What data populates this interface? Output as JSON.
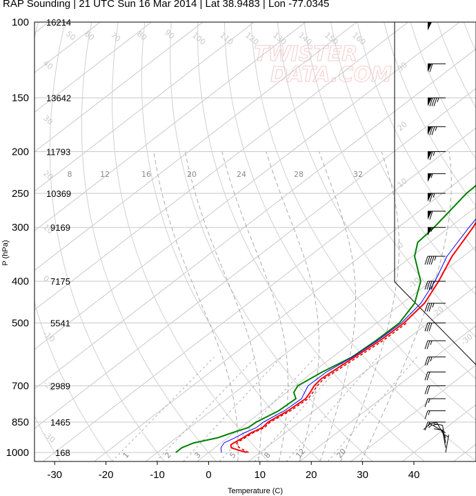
{
  "title": "RAP Sounding | 21 UTC Sun 16 Mar 2014 | Lat 38.9483 | Lon -77.0345",
  "watermark": [
    "TWISTER",
    "DATA.COM"
  ],
  "colors": {
    "temperature": "#ff0000",
    "dewpoint": "#008000",
    "wetbulb": "#0000ff",
    "parcel": "#cc0000",
    "grid": "#c8c8c8",
    "mixing_ratio": "#aaaaaa",
    "adiabat": "#d0d0d0"
  },
  "chart_data": {
    "type": "skew-t",
    "xlabel": "Temperature (C)",
    "ylabel": "P (hPa)",
    "xlim": [
      -35,
      47
    ],
    "ylim": [
      1050,
      100
    ],
    "x_ticks": [
      -30,
      -20,
      -10,
      0,
      10,
      20,
      30,
      40
    ],
    "y_ticks": [
      100,
      150,
      200,
      250,
      300,
      400,
      500,
      700,
      850,
      1000
    ],
    "heights": [
      {
        "p": 100,
        "h": "16214"
      },
      {
        "p": 150,
        "h": "13642"
      },
      {
        "p": 200,
        "h": "11793"
      },
      {
        "p": 250,
        "h": "10369"
      },
      {
        "p": 300,
        "h": "9169"
      },
      {
        "p": 400,
        "h": "7175"
      },
      {
        "p": 500,
        "h": "5541"
      },
      {
        "p": 700,
        "h": "2989"
      },
      {
        "p": 850,
        "h": "1465"
      },
      {
        "p": 1000,
        "h": "168"
      }
    ],
    "isotherm_labels": [
      "-50",
      "-40",
      "-30",
      "-20",
      "-10",
      "0",
      "10",
      "20",
      "30",
      "40",
      "50",
      "60",
      "70",
      "80",
      "90",
      "100",
      "110",
      "120",
      "130",
      "140",
      "150",
      "160"
    ],
    "mixing_ratio_labels": [
      "1",
      "2",
      "3",
      "5",
      "8",
      "12",
      "20"
    ],
    "adiabat_labels": [
      "8",
      "12",
      "16",
      "20",
      "24",
      "28",
      "32"
    ],
    "series": [
      {
        "name": "temperature",
        "points": [
          [
            1000,
            7.4
          ],
          [
            985,
            4.8
          ],
          [
            975,
            3.2
          ],
          [
            960,
            2.4
          ],
          [
            950,
            2.5
          ],
          [
            925,
            3.0
          ],
          [
            900,
            3.3
          ],
          [
            875,
            4.2
          ],
          [
            850,
            3.9
          ],
          [
            800,
            4.9
          ],
          [
            750,
            5.3
          ],
          [
            725,
            4.6
          ],
          [
            700,
            3.7
          ],
          [
            675,
            3.3
          ],
          [
            650,
            3.6
          ],
          [
            600,
            4.3
          ],
          [
            550,
            5.1
          ],
          [
            500,
            5.3
          ],
          [
            450,
            4.3
          ],
          [
            400,
            1.5
          ],
          [
            350,
            -2.2
          ],
          [
            300,
            -5.4
          ],
          [
            275,
            -7.6
          ],
          [
            250,
            -9.0
          ],
          [
            225,
            -6.8
          ],
          [
            200,
            -3.2
          ],
          [
            175,
            4.6
          ],
          [
            150,
            9.7
          ],
          [
            125,
            12.0
          ],
          [
            100,
            16.6
          ]
        ]
      },
      {
        "name": "dewpoint",
        "points": [
          [
            1000,
            -6.4
          ],
          [
            975,
            -6.4
          ],
          [
            950,
            -5.3
          ],
          [
            925,
            -2.0
          ],
          [
            900,
            -0.4
          ],
          [
            875,
            1.4
          ],
          [
            850,
            1.6
          ],
          [
            800,
            3.1
          ],
          [
            750,
            3.4
          ],
          [
            725,
            1.4
          ],
          [
            700,
            0.5
          ],
          [
            650,
            1.8
          ],
          [
            600,
            3.8
          ],
          [
            550,
            4.3
          ],
          [
            500,
            4.4
          ],
          [
            450,
            2.4
          ],
          [
            400,
            -2.0
          ],
          [
            350,
            -9.5
          ],
          [
            325,
            -12.4
          ],
          [
            300,
            -13.0
          ],
          [
            250,
            -15.3
          ],
          [
            225,
            -15.6
          ],
          [
            200,
            -18.0
          ],
          [
            175,
            -25.0
          ],
          [
            160,
            -22.0
          ],
          [
            150,
            -20.0
          ],
          [
            125,
            -20.5
          ],
          [
            100,
            -16.0
          ]
        ]
      },
      {
        "name": "wetbulb",
        "points": [
          [
            1000,
            2.5
          ],
          [
            975,
            1.2
          ],
          [
            950,
            0.6
          ],
          [
            925,
            1.4
          ],
          [
            900,
            2.0
          ],
          [
            875,
            3.0
          ],
          [
            850,
            3.0
          ],
          [
            800,
            4.2
          ],
          [
            750,
            4.5
          ],
          [
            725,
            3.5
          ],
          [
            700,
            2.5
          ],
          [
            650,
            2.6
          ],
          [
            600,
            3.9
          ],
          [
            550,
            4.6
          ],
          [
            500,
            4.8
          ],
          [
            450,
            3.6
          ],
          [
            400,
            0.8
          ],
          [
            350,
            -3.2
          ],
          [
            300,
            -6.2
          ],
          [
            250,
            -9.3
          ],
          [
            225,
            -7.2
          ],
          [
            200,
            -3.8
          ],
          [
            175,
            4.0
          ],
          [
            150,
            8.8
          ],
          [
            125,
            10.5
          ],
          [
            100,
            15.8
          ]
        ]
      },
      {
        "name": "parcel",
        "points": [
          [
            1000,
            7.8
          ],
          [
            985,
            6.0
          ],
          [
            975,
            4.8
          ],
          [
            960,
            3.6
          ],
          [
            950,
            3.1
          ],
          [
            925,
            3.4
          ],
          [
            900,
            3.7
          ],
          [
            875,
            4.6
          ],
          [
            850,
            4.3
          ],
          [
            800,
            5.4
          ],
          [
            750,
            5.8
          ],
          [
            725,
            5.1
          ],
          [
            700,
            4.3
          ],
          [
            675,
            3.8
          ],
          [
            650,
            4.2
          ],
          [
            600,
            4.9
          ],
          [
            550,
            5.7
          ],
          [
            500,
            5.8
          ]
        ]
      }
    ],
    "wind_barbs": [
      {
        "p": 100,
        "knots": 50,
        "dir": 270
      },
      {
        "p": 125,
        "knots": 60,
        "dir": 270
      },
      {
        "p": 150,
        "knots": 85,
        "dir": 270
      },
      {
        "p": 175,
        "knots": 75,
        "dir": 270
      },
      {
        "p": 200,
        "knots": 65,
        "dir": 270
      },
      {
        "p": 225,
        "knots": 55,
        "dir": 270
      },
      {
        "p": 250,
        "knots": 65,
        "dir": 270
      },
      {
        "p": 275,
        "knots": 60,
        "dir": 270
      },
      {
        "p": 300,
        "knots": 55,
        "dir": 270
      },
      {
        "p": 350,
        "knots": 45,
        "dir": 270
      },
      {
        "p": 400,
        "knots": 40,
        "dir": 270
      },
      {
        "p": 450,
        "knots": 35,
        "dir": 270
      },
      {
        "p": 500,
        "knots": 30,
        "dir": 270
      },
      {
        "p": 550,
        "knots": 25,
        "dir": 270
      },
      {
        "p": 600,
        "knots": 25,
        "dir": 270
      },
      {
        "p": 650,
        "knots": 20,
        "dir": 270
      },
      {
        "p": 700,
        "knots": 20,
        "dir": 270
      },
      {
        "p": 750,
        "knots": 15,
        "dir": 270
      },
      {
        "p": 800,
        "knots": 15,
        "dir": 270
      },
      {
        "p": 850,
        "knots": 15,
        "dir": 270
      },
      {
        "p": 900,
        "knots": 15,
        "dir": 300
      },
      {
        "p": 925,
        "knots": 15,
        "dir": 330
      },
      {
        "p": 950,
        "knots": 10,
        "dir": 350
      },
      {
        "p": 975,
        "knots": 10,
        "dir": 350
      },
      {
        "p": 1000,
        "knots": 5,
        "dir": 10
      }
    ]
  }
}
